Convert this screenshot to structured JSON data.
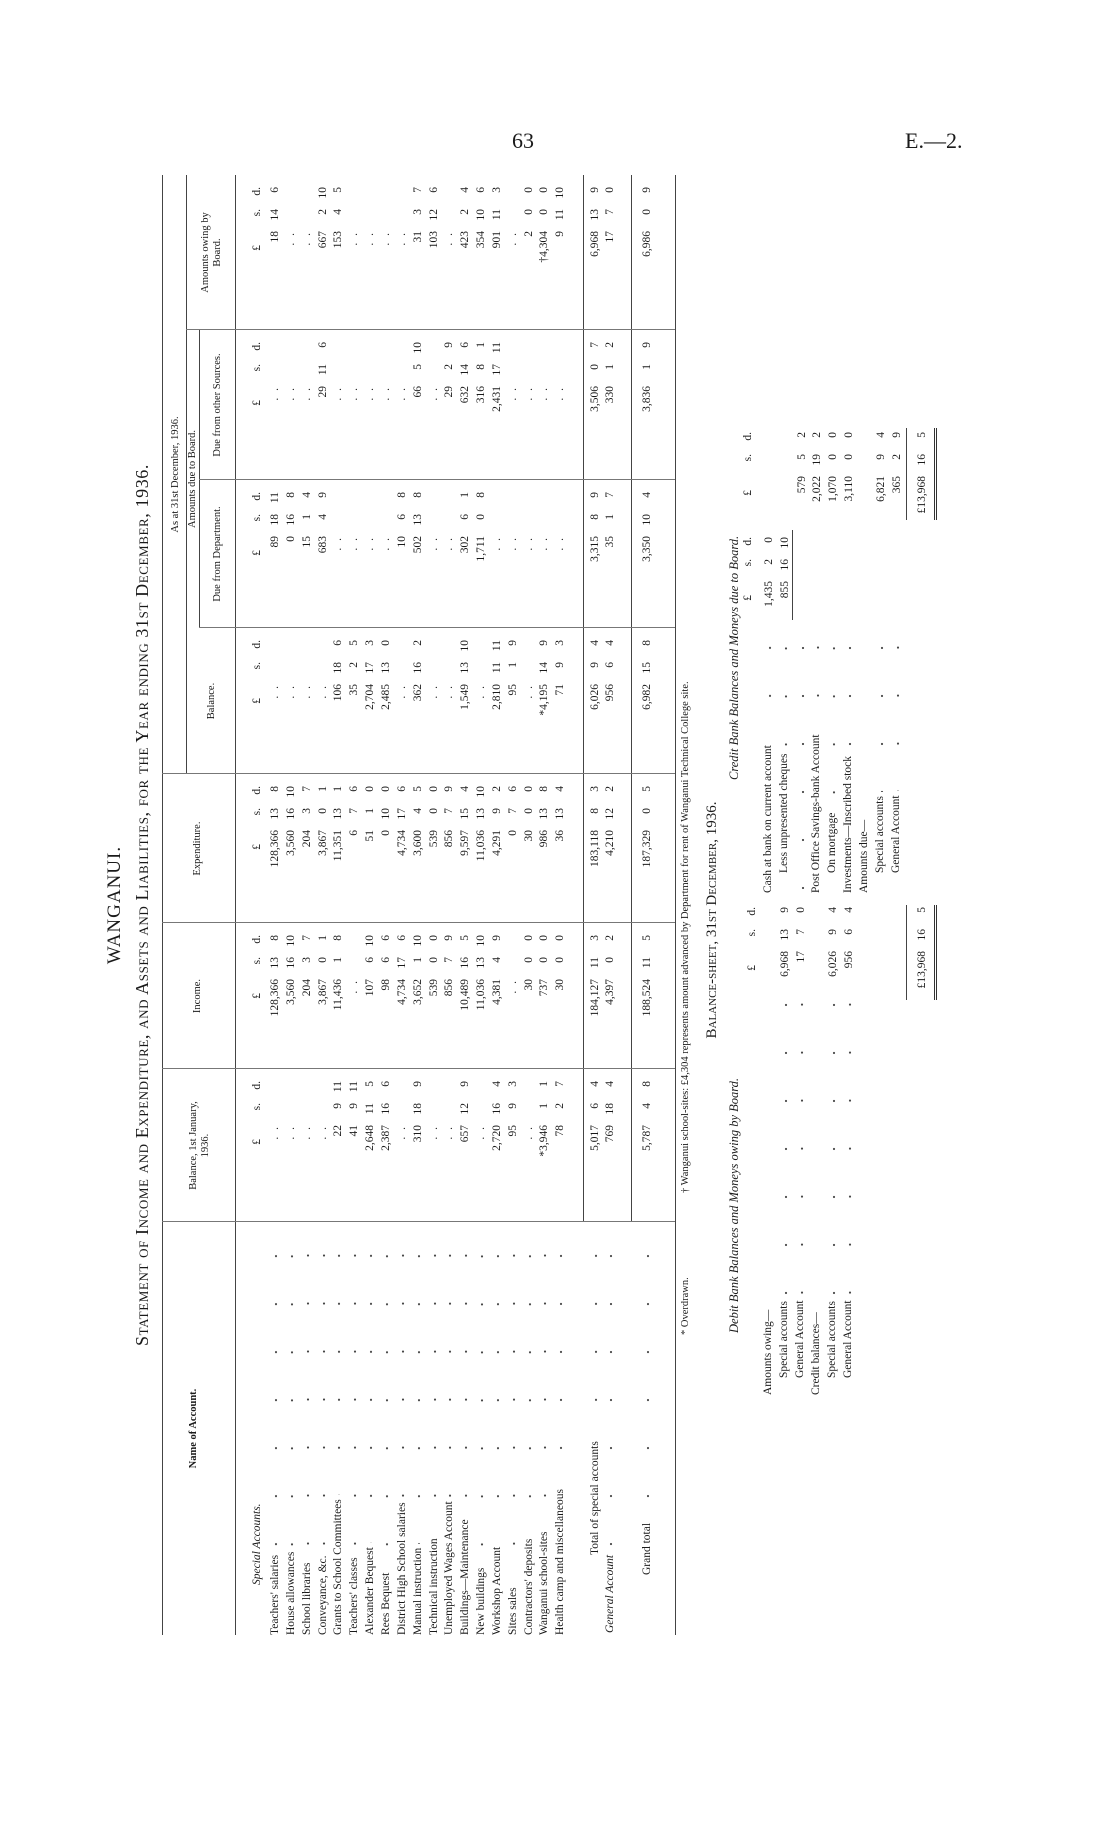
{
  "page": {
    "number": "63",
    "code": "E.—2."
  },
  "title": "WANGANUI.",
  "statement_title": "Statement of Income and Expenditure, and Assets and Liabilities, for the Year ending 31st December, 1936.",
  "headers": {
    "name": "Name of Account.",
    "balance_jan": "Balance, 1st January, 1936.",
    "income": "Income.",
    "expenditure": "Expenditure.",
    "balance": "Balance.",
    "as_at": "As at 31st December, 1936.",
    "amounts_due": "Amounts due to Board.",
    "due_department": "Due from Department.",
    "due_other": "Due from other Sources.",
    "owing": "Amounts owing by Board."
  },
  "currency": {
    "pounds": "£",
    "shillings": "s.",
    "pence": "d."
  },
  "section_label": "Special Accounts.",
  "columns": [
    "bal_jan",
    "income",
    "expenditure",
    "balance",
    "due_department",
    "due_other",
    "owing"
  ],
  "rows": [
    {
      "name": "Teachers' salaries",
      "bal_jan": null,
      "income": [
        "128,366",
        "13",
        "8"
      ],
      "expenditure": [
        "128,366",
        "13",
        "8"
      ],
      "balance": null,
      "due_department": [
        "89",
        "18",
        "11"
      ],
      "due_other": null,
      "owing": [
        "18",
        "14",
        "6"
      ]
    },
    {
      "name": "House allowances",
      "bal_jan": null,
      "income": [
        "3,560",
        "16",
        "10"
      ],
      "expenditure": [
        "3,560",
        "16",
        "10"
      ],
      "balance": null,
      "due_department": [
        "0",
        "16",
        "8"
      ],
      "due_other": null,
      "owing": null
    },
    {
      "name": "School libraries",
      "bal_jan": null,
      "income": [
        "204",
        "3",
        "7"
      ],
      "expenditure": [
        "204",
        "3",
        "7"
      ],
      "balance": null,
      "due_department": [
        "15",
        "1",
        "4"
      ],
      "due_other": null,
      "owing": null
    },
    {
      "name": "Conveyance, &c.",
      "bal_jan": null,
      "income": [
        "3,867",
        "0",
        "1"
      ],
      "expenditure": [
        "3,867",
        "0",
        "1"
      ],
      "balance": null,
      "due_department": [
        "683",
        "4",
        "9"
      ],
      "due_other": [
        "29",
        "11",
        "6"
      ],
      "owing": [
        "667",
        "2",
        "10"
      ]
    },
    {
      "name": "Grants to School Committees",
      "bal_jan": [
        "22",
        "9",
        "11"
      ],
      "income": [
        "11,436",
        "1",
        "8"
      ],
      "expenditure": [
        "11,351",
        "13",
        "1"
      ],
      "balance": [
        "106",
        "18",
        "6"
      ],
      "due_department": null,
      "due_other": null,
      "owing": [
        "153",
        "4",
        "5"
      ]
    },
    {
      "name": "Teachers' classes",
      "bal_jan": [
        "41",
        "9",
        "11"
      ],
      "income": null,
      "expenditure": [
        "6",
        "7",
        "6"
      ],
      "balance": [
        "35",
        "2",
        "5"
      ],
      "due_department": null,
      "due_other": null,
      "owing": null
    },
    {
      "name": "Alexander Bequest",
      "bal_jan": [
        "2,648",
        "11",
        "5"
      ],
      "income": [
        "107",
        "6",
        "10"
      ],
      "expenditure": [
        "51",
        "1",
        "0"
      ],
      "balance": [
        "2,704",
        "17",
        "3"
      ],
      "due_department": null,
      "due_other": null,
      "owing": null
    },
    {
      "name": "Rees Bequest",
      "bal_jan": [
        "2,387",
        "16",
        "6"
      ],
      "income": [
        "98",
        "6",
        "6"
      ],
      "expenditure": [
        "0",
        "10",
        "0"
      ],
      "balance": [
        "2,485",
        "13",
        "0"
      ],
      "due_department": null,
      "due_other": null,
      "owing": null
    },
    {
      "name": "District High School salaries",
      "bal_jan": null,
      "income": [
        "4,734",
        "17",
        "6"
      ],
      "expenditure": [
        "4,734",
        "17",
        "6"
      ],
      "balance": null,
      "due_department": [
        "10",
        "6",
        "8"
      ],
      "due_other": null,
      "owing": null
    },
    {
      "name": "Manual instruction",
      "bal_jan": [
        "310",
        "18",
        "9"
      ],
      "income": [
        "3,652",
        "1",
        "10"
      ],
      "expenditure": [
        "3,600",
        "4",
        "5"
      ],
      "balance": [
        "362",
        "16",
        "2"
      ],
      "due_department": [
        "502",
        "13",
        "8"
      ],
      "due_other": [
        "66",
        "5",
        "10"
      ],
      "owing": [
        "31",
        "3",
        "7"
      ]
    },
    {
      "name": "Technical instruction",
      "bal_jan": null,
      "income": [
        "539",
        "0",
        "0"
      ],
      "expenditure": [
        "539",
        "0",
        "0"
      ],
      "balance": null,
      "due_department": null,
      "due_other": null,
      "owing": [
        "103",
        "12",
        "6"
      ]
    },
    {
      "name": "Unemployed Wages Account",
      "bal_jan": null,
      "income": [
        "856",
        "7",
        "9"
      ],
      "expenditure": [
        "856",
        "7",
        "9"
      ],
      "balance": null,
      "due_department": null,
      "due_other": [
        "29",
        "2",
        "9"
      ],
      "owing": null
    },
    {
      "name": "Buildings—Maintenance",
      "bal_jan": [
        "657",
        "12",
        "9"
      ],
      "income": [
        "10,489",
        "16",
        "5"
      ],
      "expenditure": [
        "9,597",
        "15",
        "4"
      ],
      "balance": [
        "1,549",
        "13",
        "10"
      ],
      "due_department": [
        "302",
        "6",
        "1"
      ],
      "due_other": [
        "632",
        "14",
        "6"
      ],
      "owing": [
        "423",
        "2",
        "4"
      ]
    },
    {
      "name": "New buildings",
      "bal_jan": null,
      "income": [
        "11,036",
        "13",
        "10"
      ],
      "expenditure": [
        "11,036",
        "13",
        "10"
      ],
      "balance": null,
      "due_department": [
        "1,711",
        "0",
        "8"
      ],
      "due_other": [
        "316",
        "8",
        "1"
      ],
      "owing": [
        "354",
        "10",
        "6"
      ]
    },
    {
      "name": "Workshop Account",
      "bal_jan": [
        "2,720",
        "16",
        "4"
      ],
      "income": [
        "4,381",
        "4",
        "9"
      ],
      "expenditure": [
        "4,291",
        "9",
        "2"
      ],
      "balance": [
        "2,810",
        "11",
        "11"
      ],
      "due_department": null,
      "due_other": [
        "2,431",
        "17",
        "11"
      ],
      "owing": [
        "901",
        "11",
        "3"
      ]
    },
    {
      "name": "Sites sales",
      "bal_jan": [
        "95",
        "9",
        "3"
      ],
      "income": null,
      "expenditure": [
        "0",
        "7",
        "6"
      ],
      "balance": [
        "95",
        "1",
        "9"
      ],
      "due_department": null,
      "due_other": null,
      "owing": null
    },
    {
      "name": "Contractors' deposits",
      "bal_jan": null,
      "income": [
        "30",
        "0",
        "0"
      ],
      "expenditure": [
        "30",
        "0",
        "0"
      ],
      "balance": null,
      "due_department": null,
      "due_other": null,
      "owing": [
        "2",
        "0",
        "0"
      ]
    },
    {
      "name": "Wanganui school-sites",
      "bal_jan": [
        "*3,946",
        "1",
        "1"
      ],
      "income": [
        "737",
        "0",
        "0"
      ],
      "expenditure": [
        "986",
        "13",
        "8"
      ],
      "balance": [
        "*4,195",
        "14",
        "9"
      ],
      "due_department": null,
      "due_other": null,
      "owing": [
        "†4,304",
        "0",
        "0"
      ]
    },
    {
      "name": "Health camp and miscellaneous",
      "bal_jan": [
        "78",
        "2",
        "7"
      ],
      "income": [
        "30",
        "0",
        "0"
      ],
      "expenditure": [
        "36",
        "13",
        "4"
      ],
      "balance": [
        "71",
        "9",
        "3"
      ],
      "due_department": null,
      "due_other": null,
      "owing": [
        "9",
        "11",
        "10"
      ]
    }
  ],
  "totals": [
    {
      "name": "Total of special accounts",
      "bal_jan": [
        "5,017",
        "6",
        "4"
      ],
      "income": [
        "184,127",
        "11",
        "3"
      ],
      "expenditure": [
        "183,118",
        "8",
        "3"
      ],
      "balance": [
        "6,026",
        "9",
        "4"
      ],
      "due_department": [
        "3,315",
        "8",
        "9"
      ],
      "due_other": [
        "3,506",
        "0",
        "7"
      ],
      "owing": [
        "6,968",
        "13",
        "9"
      ]
    },
    {
      "name": "General Account",
      "bal_jan": [
        "769",
        "18",
        "4"
      ],
      "income": [
        "4,397",
        "0",
        "2"
      ],
      "expenditure": [
        "4,210",
        "12",
        "2"
      ],
      "balance": [
        "956",
        "6",
        "4"
      ],
      "due_department": [
        "35",
        "1",
        "7"
      ],
      "due_other": [
        "330",
        "1",
        "2"
      ],
      "owing": [
        "17",
        "7",
        "0"
      ]
    },
    {
      "name": "Grand total",
      "bal_jan": [
        "5,787",
        "4",
        "8"
      ],
      "income": [
        "188,524",
        "11",
        "5"
      ],
      "expenditure": [
        "187,329",
        "0",
        "5"
      ],
      "balance": [
        "6,982",
        "15",
        "8"
      ],
      "due_department": [
        "3,350",
        "10",
        "4"
      ],
      "due_other": [
        "3,836",
        "1",
        "9"
      ],
      "owing": [
        "6,986",
        "0",
        "9"
      ]
    }
  ],
  "footnotes": {
    "overdrawn": "* Overdrawn.",
    "sites": "† Wanganui school-sites: £4,304 represents amount advanced by Department for rent of Wanganui Technical College site."
  },
  "balance_sheet": {
    "title": "Balance-sheet, 31st December, 1936.",
    "debit": {
      "title": "Debit Bank Balances and Moneys owing by Board.",
      "items": [
        {
          "label": "Amounts owing—",
          "indent": false,
          "value": null
        },
        {
          "label": "Special accounts",
          "indent": true,
          "value": [
            "6,968",
            "13",
            "9"
          ]
        },
        {
          "label": "General Account",
          "indent": true,
          "value": [
            "17",
            "7",
            "0"
          ]
        },
        {
          "label": "Credit balances—",
          "indent": false,
          "value": null
        },
        {
          "label": "Special accounts",
          "indent": true,
          "value": [
            "6,026",
            "9",
            "4"
          ]
        },
        {
          "label": "General Account",
          "indent": true,
          "value": [
            "956",
            "6",
            "4"
          ]
        }
      ],
      "total": [
        "£13,968",
        "16",
        "5"
      ]
    },
    "credit": {
      "title": "Credit Bank Balances and Moneys due to Board.",
      "items": [
        {
          "label": "Cash at bank on current account",
          "indent": false,
          "value1": [
            "1,435",
            "2",
            "0"
          ],
          "value2": null
        },
        {
          "label": "Less unpresented cheques",
          "indent": true,
          "value1": [
            "855",
            "16",
            "10"
          ],
          "value2": null
        },
        {
          "label": "",
          "indent": false,
          "value1": null,
          "value2": [
            "579",
            "5",
            "2"
          ]
        },
        {
          "label": "Post Office Savings-bank Account",
          "indent": false,
          "value1": null,
          "value2": [
            "2,022",
            "19",
            "2"
          ]
        },
        {
          "label": "On mortgage",
          "indent": true,
          "value1": null,
          "value2": [
            "1,070",
            "0",
            "0"
          ]
        },
        {
          "label": "Investments—Inscribed stock",
          "indent": false,
          "value1": null,
          "value2": [
            "3,110",
            "0",
            "0"
          ]
        },
        {
          "label": "Amounts due—",
          "indent": false,
          "value1": null,
          "value2": null
        },
        {
          "label": "Special accounts",
          "indent": true,
          "value1": null,
          "value2": [
            "6,821",
            "9",
            "4"
          ]
        },
        {
          "label": "General Account",
          "indent": true,
          "value1": null,
          "value2": [
            "365",
            "2",
            "9"
          ]
        }
      ],
      "total": [
        "£13,968",
        "16",
        "5"
      ]
    }
  }
}
